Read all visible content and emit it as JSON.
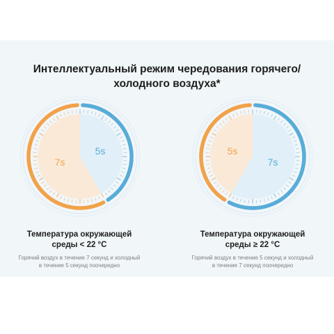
{
  "title_line1": "Интеллектуальный режим чередования горячего/",
  "title_line2": "холодного воздуха*",
  "colors": {
    "hot": "#f1a24a",
    "cold": "#58acd8",
    "hot_fill": "#fbe9d8",
    "cold_fill": "#e1eff8",
    "background": "#f1f6f9"
  },
  "dials": [
    {
      "hot_seconds": 7,
      "cold_seconds": 5,
      "hot_label": "7s",
      "cold_label": "5s",
      "caption_title_line1": "Температура окружающей",
      "caption_title_line2": "среды < 22 °C",
      "caption_text": "Горячий воздух в течение 7 секунд и холодный в течение 5 секунд поочередно"
    },
    {
      "hot_seconds": 5,
      "cold_seconds": 7,
      "hot_label": "5s",
      "cold_label": "7s",
      "caption_title_line1": "Температура окружающей",
      "caption_title_line2": "среды ≥ 22 °C",
      "caption_text": "Горячий воздух в течение 5 секунд и холодный в течение 7 секунд поочередно"
    }
  ]
}
